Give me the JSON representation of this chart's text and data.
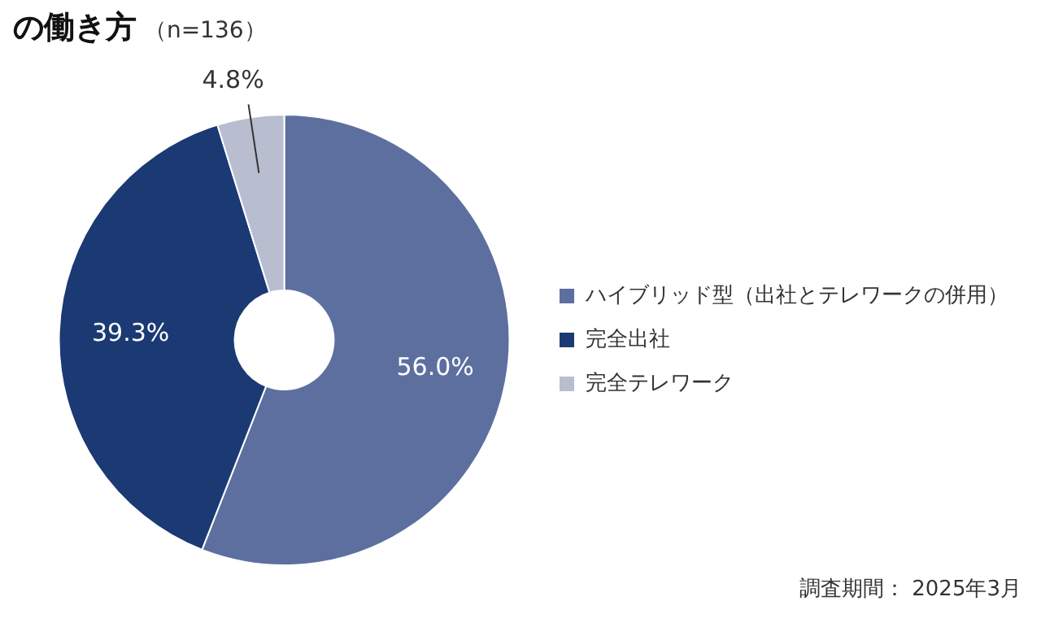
{
  "chart_data": {
    "type": "donut",
    "title": "の働き方",
    "subtitle": "（n=136）",
    "categories": [
      "ハイブリッド型（出社とテレワークの併用）",
      "完全出社",
      "完全テレワーク"
    ],
    "values": [
      56.0,
      39.3,
      4.8
    ],
    "colors": [
      "#5d6f9f",
      "#1b3a73",
      "#b8bdd0"
    ],
    "value_labels": [
      "56.0%",
      "39.3%",
      "4.8%"
    ],
    "legend": "right",
    "annotations": [
      "調査期間： 2025年3月"
    ]
  }
}
